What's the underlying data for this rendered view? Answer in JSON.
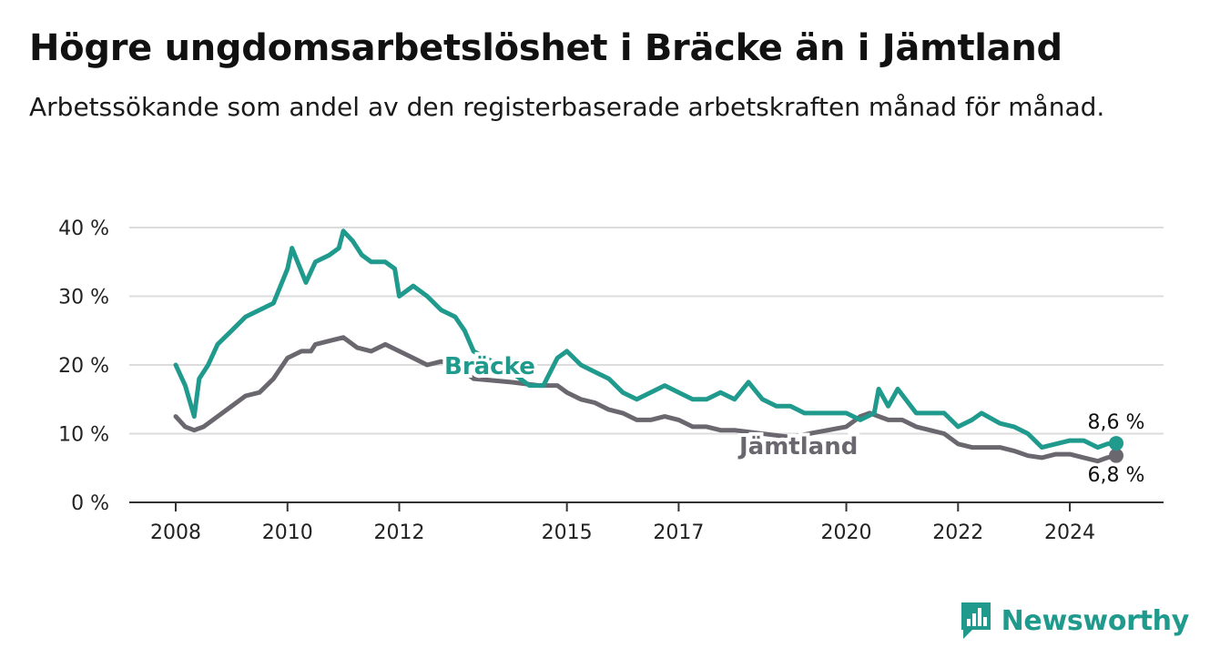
{
  "title": "Högre ungdomsarbetslöshet i Bräcke än i Jämtland",
  "subtitle": "Arbetssökande som andel av den registerbaserade arbetskraften månad för månad.",
  "brand": {
    "name": "Newsworthy",
    "color": "#1f9a8d",
    "icon": "bar-chart-speech-bubble-icon"
  },
  "chart_data": {
    "type": "line",
    "title": "Högre ungdomsarbetslöshet i Bräcke än i Jämtland",
    "subtitle": "Arbetssökande som andel av den registerbaserade arbetskraften månad för månad.",
    "xlabel": "",
    "ylabel": "",
    "x_ticks": [
      2008,
      2010,
      2012,
      2015,
      2017,
      2020,
      2022,
      2024
    ],
    "y_ticks": [
      0,
      10,
      20,
      30,
      40
    ],
    "y_tick_labels": [
      "0 %",
      "10 %",
      "20 %",
      "30 %",
      "40 %"
    ],
    "ylim": [
      0,
      40
    ],
    "grid": true,
    "legend": "direct labels on lines",
    "series": [
      {
        "name": "Bräcke",
        "color": "#1f9a8d",
        "end_label": "8,6 %",
        "points": [
          [
            2008.0,
            20
          ],
          [
            2008.17,
            17
          ],
          [
            2008.33,
            12.5
          ],
          [
            2008.42,
            18
          ],
          [
            2008.58,
            20
          ],
          [
            2008.75,
            23
          ],
          [
            2009.0,
            25
          ],
          [
            2009.25,
            27
          ],
          [
            2009.5,
            28
          ],
          [
            2009.75,
            29
          ],
          [
            2010.0,
            34
          ],
          [
            2010.08,
            37
          ],
          [
            2010.33,
            32
          ],
          [
            2010.5,
            35
          ],
          [
            2010.75,
            36
          ],
          [
            2010.92,
            37
          ],
          [
            2011.0,
            39.5
          ],
          [
            2011.17,
            38
          ],
          [
            2011.33,
            36
          ],
          [
            2011.5,
            35
          ],
          [
            2011.75,
            35
          ],
          [
            2011.92,
            34
          ],
          [
            2012.0,
            30
          ],
          [
            2012.25,
            31.5
          ],
          [
            2012.5,
            30
          ],
          [
            2012.75,
            28
          ],
          [
            2013.0,
            27
          ],
          [
            2013.17,
            25
          ],
          [
            2013.33,
            22
          ],
          [
            2014.0,
            19
          ],
          [
            2014.33,
            17
          ],
          [
            2014.58,
            17
          ],
          [
            2014.83,
            21
          ],
          [
            2015.0,
            22
          ],
          [
            2015.25,
            20
          ],
          [
            2015.5,
            19
          ],
          [
            2015.75,
            18
          ],
          [
            2016.0,
            16
          ],
          [
            2016.25,
            15
          ],
          [
            2016.5,
            16
          ],
          [
            2016.75,
            17
          ],
          [
            2017.0,
            16
          ],
          [
            2017.25,
            15
          ],
          [
            2017.5,
            15
          ],
          [
            2017.75,
            16
          ],
          [
            2018.0,
            15
          ],
          [
            2018.25,
            17.5
          ],
          [
            2018.5,
            15
          ],
          [
            2018.75,
            14
          ],
          [
            2019.0,
            14
          ],
          [
            2019.25,
            13
          ],
          [
            2019.5,
            13
          ],
          [
            2019.75,
            13
          ],
          [
            2020.0,
            13
          ],
          [
            2020.25,
            12
          ],
          [
            2020.5,
            13
          ],
          [
            2020.58,
            16.5
          ],
          [
            2020.75,
            14
          ],
          [
            2020.92,
            16.5
          ],
          [
            2021.25,
            13
          ],
          [
            2021.5,
            13
          ],
          [
            2021.75,
            13
          ],
          [
            2022.0,
            11
          ],
          [
            2022.25,
            12
          ],
          [
            2022.42,
            13
          ],
          [
            2022.75,
            11.5
          ],
          [
            2023.0,
            11
          ],
          [
            2023.25,
            10
          ],
          [
            2023.5,
            8
          ],
          [
            2023.75,
            8.5
          ],
          [
            2024.0,
            9
          ],
          [
            2024.25,
            9
          ],
          [
            2024.5,
            8
          ],
          [
            2024.67,
            8.5
          ],
          [
            2024.83,
            8.6
          ]
        ]
      },
      {
        "name": "Jämtland",
        "color": "#6b676f",
        "end_label": "6,8 %",
        "points": [
          [
            2008.0,
            12.5
          ],
          [
            2008.17,
            11
          ],
          [
            2008.33,
            10.5
          ],
          [
            2008.5,
            11
          ],
          [
            2008.75,
            12.5
          ],
          [
            2009.0,
            14
          ],
          [
            2009.25,
            15.5
          ],
          [
            2009.5,
            16
          ],
          [
            2009.75,
            18
          ],
          [
            2010.0,
            21
          ],
          [
            2010.25,
            22
          ],
          [
            2010.42,
            22
          ],
          [
            2010.5,
            23
          ],
          [
            2010.75,
            23.5
          ],
          [
            2011.0,
            24
          ],
          [
            2011.25,
            22.5
          ],
          [
            2011.5,
            22
          ],
          [
            2011.75,
            23
          ],
          [
            2012.0,
            22
          ],
          [
            2012.25,
            21
          ],
          [
            2012.5,
            20
          ],
          [
            2012.75,
            20.5
          ],
          [
            2013.0,
            20
          ],
          [
            2013.33,
            18
          ],
          [
            2014.0,
            17.5
          ],
          [
            2014.5,
            17
          ],
          [
            2014.83,
            17
          ],
          [
            2015.0,
            16
          ],
          [
            2015.25,
            15
          ],
          [
            2015.5,
            14.5
          ],
          [
            2015.75,
            13.5
          ],
          [
            2016.0,
            13
          ],
          [
            2016.25,
            12
          ],
          [
            2016.5,
            12
          ],
          [
            2016.75,
            12.5
          ],
          [
            2017.0,
            12
          ],
          [
            2017.25,
            11
          ],
          [
            2017.5,
            11
          ],
          [
            2017.75,
            10.5
          ],
          [
            2018.0,
            10.5
          ],
          [
            2019.0,
            9.5
          ],
          [
            2020.0,
            11
          ],
          [
            2020.25,
            12.5
          ],
          [
            2020.42,
            13
          ],
          [
            2020.75,
            12
          ],
          [
            2021.0,
            12
          ],
          [
            2021.25,
            11
          ],
          [
            2021.5,
            10.5
          ],
          [
            2021.75,
            10
          ],
          [
            2022.0,
            8.5
          ],
          [
            2022.25,
            8
          ],
          [
            2022.5,
            8
          ],
          [
            2022.75,
            8
          ],
          [
            2023.0,
            7.5
          ],
          [
            2023.25,
            6.8
          ],
          [
            2023.5,
            6.5
          ],
          [
            2023.75,
            7
          ],
          [
            2024.0,
            7
          ],
          [
            2024.25,
            6.5
          ],
          [
            2024.5,
            6
          ],
          [
            2024.67,
            6.5
          ],
          [
            2024.83,
            6.8
          ]
        ]
      }
    ]
  }
}
